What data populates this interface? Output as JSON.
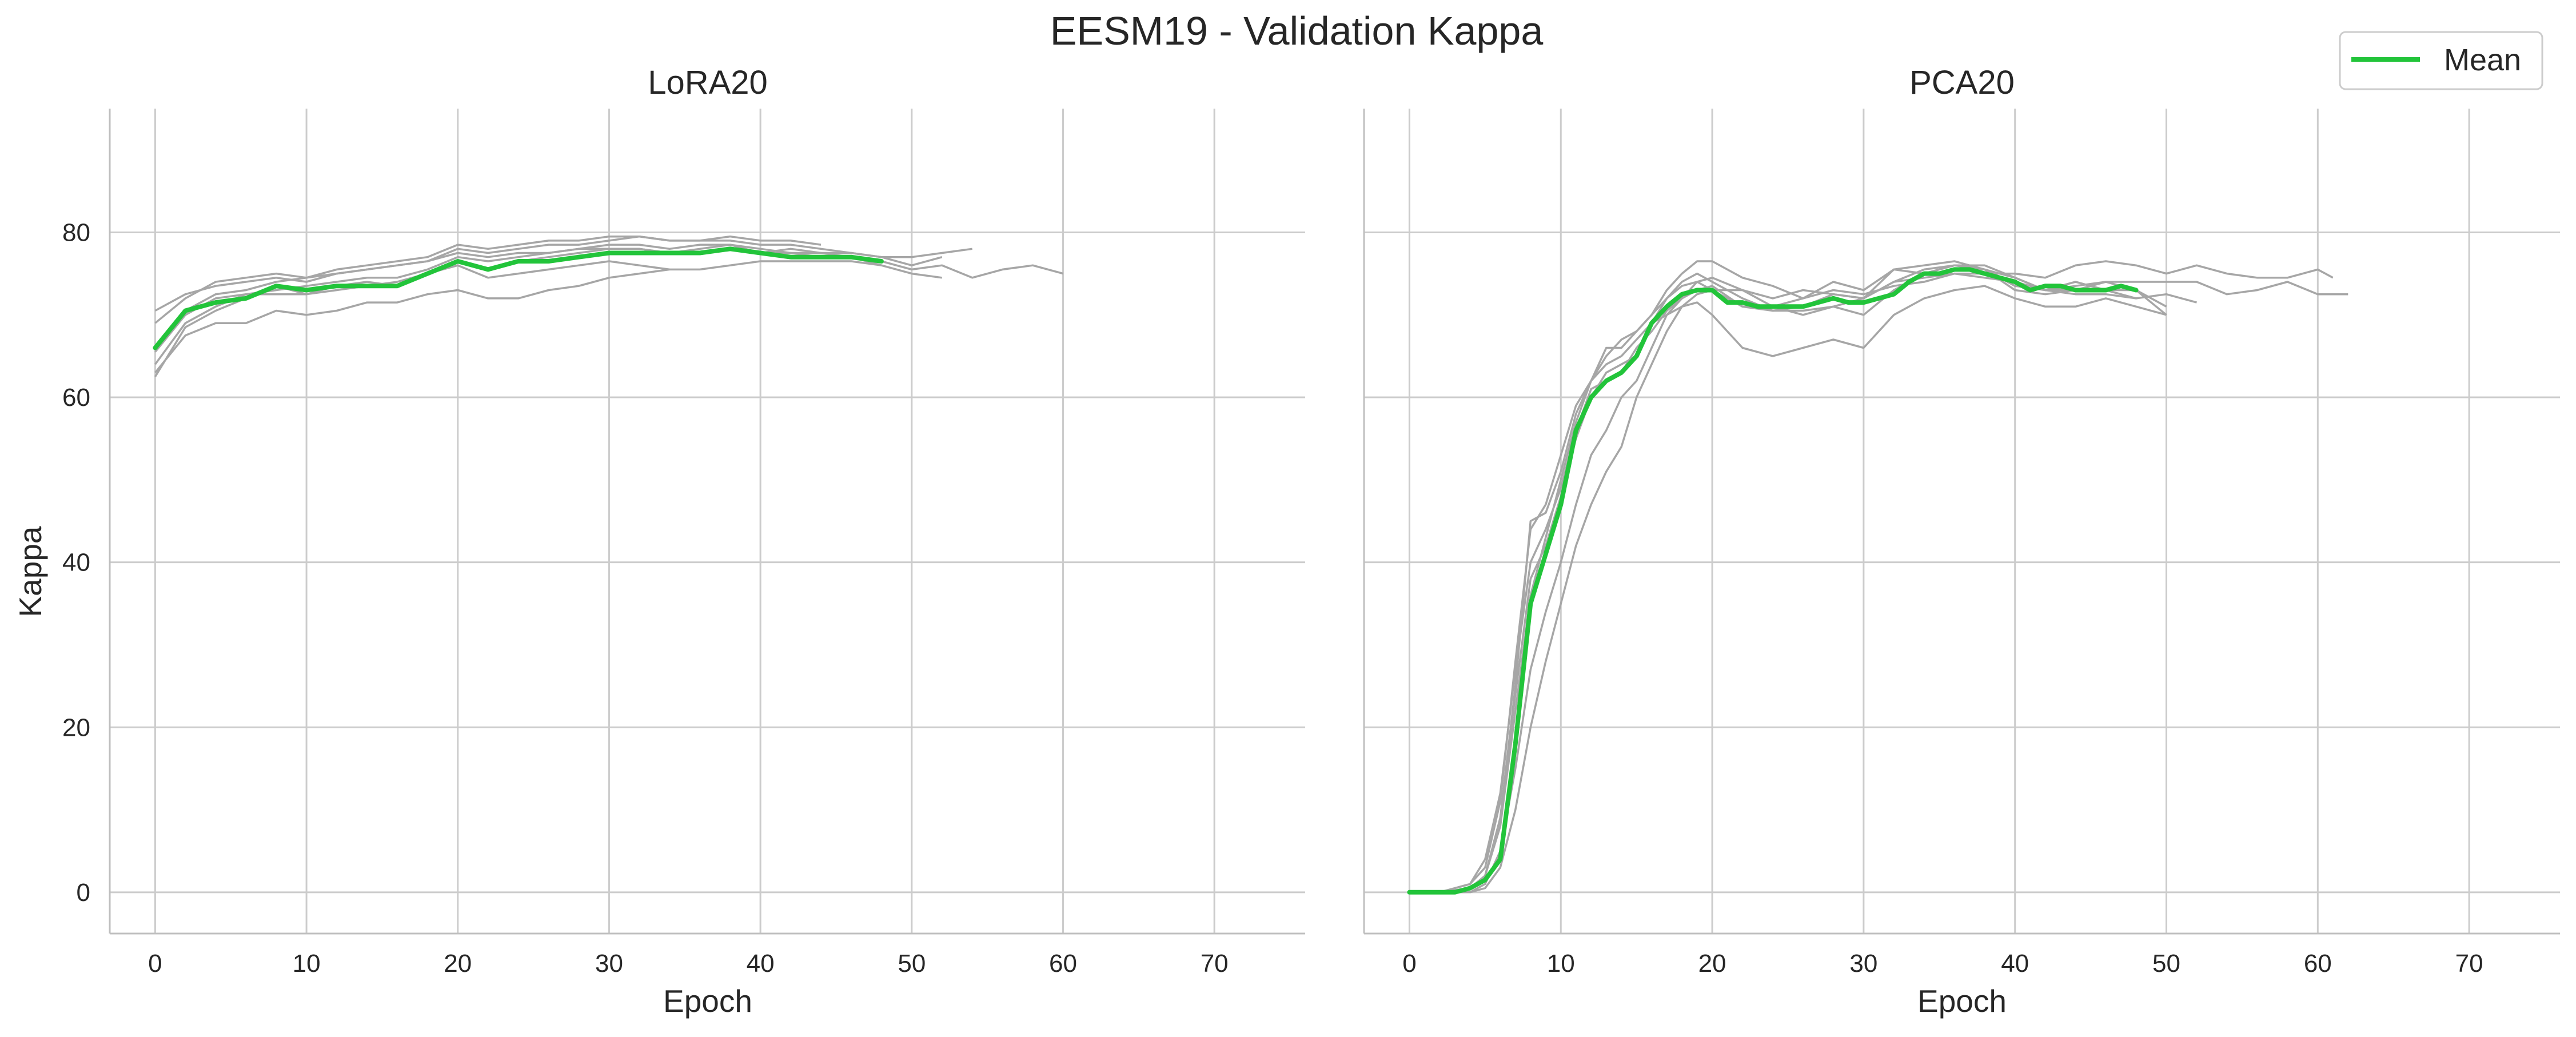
{
  "figure": {
    "title": "EESM19 - Validation Kappa"
  },
  "colors": {
    "mean": "#22c43a",
    "run": "#a6a6a6",
    "grid": "#cccccc",
    "spine": "#bfbfbf",
    "text": "#262626"
  },
  "legend": {
    "label": "Mean",
    "placement": "top-right"
  },
  "chart_data": [
    {
      "type": "line",
      "title": "LoRA20",
      "xlabel": "Epoch",
      "ylabel": "Kappa",
      "xlim": [
        -3,
        76
      ],
      "ylim": [
        -5,
        95
      ],
      "x_ticks": [
        0,
        10,
        20,
        30,
        40,
        50,
        60,
        70
      ],
      "y_ticks": [
        0,
        20,
        40,
        60,
        80
      ],
      "grid": true,
      "runs": [
        {
          "x": [
            0,
            2,
            4,
            6,
            8,
            10,
            12,
            14,
            16,
            18,
            20,
            22,
            24,
            26,
            28,
            30,
            32,
            34,
            36,
            38,
            40,
            42,
            44,
            46,
            48
          ],
          "values": [
            62.5,
            68.5,
            70.5,
            72,
            73.5,
            72.5,
            73.5,
            74,
            73.5,
            75,
            76.5,
            75.5,
            76.5,
            77,
            77.5,
            78,
            78,
            77.5,
            78,
            78.5,
            78,
            77.5,
            77.5,
            77,
            76
          ]
        },
        {
          "x": [
            0,
            2,
            4,
            6,
            8,
            10,
            12,
            14,
            16,
            18,
            20,
            22,
            24,
            26,
            28,
            30,
            32,
            34,
            36,
            38,
            40,
            42,
            44,
            46,
            48,
            50,
            52
          ],
          "values": [
            64,
            69,
            71,
            72.5,
            73,
            73.5,
            74,
            74.5,
            74.5,
            75.5,
            77,
            76.5,
            77,
            77.5,
            78,
            78.5,
            78.5,
            78,
            78.5,
            78.5,
            77.5,
            78,
            77.5,
            77.5,
            77,
            76,
            77
          ]
        },
        {
          "x": [
            0,
            2,
            4,
            6,
            8,
            10,
            12,
            14,
            16,
            18,
            20,
            22,
            24,
            26,
            28,
            30,
            32,
            34,
            36,
            38,
            40,
            42,
            44,
            46,
            48,
            50,
            52,
            54
          ],
          "values": [
            66,
            70.5,
            72.5,
            73,
            74,
            74.5,
            75,
            75.5,
            76,
            76.5,
            78,
            77.5,
            78,
            78.5,
            78.5,
            79,
            79.5,
            79,
            79,
            79,
            78.5,
            78.5,
            78,
            77.5,
            77,
            77,
            77.5,
            78
          ]
        },
        {
          "x": [
            0,
            2,
            4,
            6,
            8,
            10,
            12,
            14,
            16,
            18,
            20,
            22,
            24,
            26,
            28,
            30,
            32,
            34,
            36,
            38,
            40,
            42,
            44
          ],
          "values": [
            69,
            72,
            74,
            74.5,
            75,
            74.5,
            75.5,
            76,
            76.5,
            77,
            78.5,
            78,
            78.5,
            79,
            79,
            79.5,
            79.5,
            79,
            79,
            79.5,
            79,
            79,
            78.5
          ]
        },
        {
          "x": [
            0,
            2,
            4,
            6,
            8,
            10,
            12,
            14,
            16,
            18,
            20,
            22,
            24,
            26,
            28,
            30,
            32,
            34,
            36,
            38,
            40,
            42,
            44,
            46,
            48,
            50,
            52,
            54,
            56,
            58,
            60
          ],
          "values": [
            70.5,
            72.5,
            73.5,
            74,
            74.5,
            74,
            75,
            75.5,
            76,
            76.5,
            77.5,
            77,
            77.5,
            77.5,
            78,
            78,
            78,
            77.5,
            77.5,
            78,
            77.5,
            77.5,
            77,
            77,
            76.5,
            75.5,
            76,
            74.5,
            75.5,
            76,
            75
          ]
        },
        {
          "x": [
            0,
            2,
            4,
            6,
            8,
            10,
            12,
            14,
            16,
            18,
            20,
            22,
            24,
            26,
            28,
            30,
            32,
            34,
            36,
            38,
            40,
            42,
            44,
            46,
            48,
            50,
            52
          ],
          "values": [
            63,
            67.5,
            69,
            69,
            70.5,
            70,
            70.5,
            71.5,
            71.5,
            72.5,
            73,
            72,
            72,
            73,
            73.5,
            74.5,
            75,
            75.5,
            75.5,
            76,
            76.5,
            76.5,
            76.5,
            76.5,
            76,
            75,
            74.5
          ]
        },
        {
          "x": [
            0,
            2,
            4,
            6,
            8,
            10,
            12,
            14,
            16,
            18,
            20,
            22,
            24,
            26,
            28,
            30,
            32,
            34
          ],
          "values": [
            65.5,
            70,
            72,
            72.5,
            72.5,
            72.5,
            73,
            73.5,
            74,
            75,
            76,
            74.5,
            75,
            75.5,
            76,
            76.5,
            76,
            75.5
          ]
        }
      ],
      "mean": {
        "name": "Mean",
        "x": [
          0,
          2,
          4,
          6,
          8,
          10,
          12,
          14,
          16,
          18,
          20,
          22,
          24,
          26,
          28,
          30,
          32,
          34,
          36,
          38,
          40,
          42,
          44,
          46,
          48
        ],
        "values": [
          66,
          70.5,
          71.5,
          72,
          73.5,
          73,
          73.5,
          73.5,
          73.5,
          75,
          76.5,
          75.5,
          76.5,
          76.5,
          77,
          77.5,
          77.5,
          77.5,
          77.5,
          78,
          77.5,
          77,
          77,
          77,
          76.5
        ]
      }
    },
    {
      "type": "line",
      "title": "PCA20",
      "xlabel": "Epoch",
      "ylabel": "",
      "xlim": [
        -3,
        76
      ],
      "ylim": [
        -5,
        95
      ],
      "x_ticks": [
        0,
        10,
        20,
        30,
        40,
        50,
        60,
        70
      ],
      "y_ticks": [
        0,
        20,
        40,
        60,
        80
      ],
      "grid": true,
      "runs": [
        {
          "x": [
            0,
            2,
            4,
            5,
            6,
            7,
            8,
            9,
            10,
            11,
            12,
            13,
            14,
            15,
            16,
            17,
            18,
            19,
            20,
            22,
            24,
            26,
            28,
            30,
            32,
            34,
            36,
            38,
            40,
            42,
            44,
            46,
            48,
            50,
            52
          ],
          "values": [
            0,
            0,
            0.5,
            2,
            9,
            25,
            45,
            46,
            51,
            58,
            62,
            66,
            66,
            68,
            70,
            73,
            75,
            76.5,
            76.5,
            74.5,
            73.5,
            72,
            74,
            73,
            75.5,
            76,
            76.5,
            75.5,
            73.5,
            73,
            72.5,
            72.5,
            72,
            72.5,
            71.5
          ]
        },
        {
          "x": [
            0,
            2,
            4,
            5,
            6,
            7,
            8,
            9,
            10,
            11,
            12,
            13,
            14,
            15,
            16,
            17,
            18,
            19,
            20,
            22,
            24,
            26,
            28,
            30,
            32,
            34,
            36,
            38,
            40,
            42,
            44,
            46,
            48,
            50,
            52,
            54,
            56,
            58,
            60,
            62
          ],
          "values": [
            0,
            0,
            0,
            1,
            5,
            15,
            27,
            34,
            40,
            47,
            53,
            56,
            60,
            62,
            66,
            70,
            72,
            74,
            74.5,
            73,
            72,
            73,
            72.5,
            72,
            74,
            74.5,
            75,
            74.5,
            74,
            73,
            73.5,
            74,
            74,
            74,
            74,
            72.5,
            73,
            74,
            72.5,
            72.5
          ]
        },
        {
          "x": [
            0,
            2,
            4,
            5,
            6,
            7,
            8,
            9,
            10,
            11,
            12,
            13,
            14,
            15,
            16,
            17,
            18,
            19,
            20,
            22,
            24,
            26,
            28,
            30,
            32,
            34,
            36,
            38,
            40,
            42,
            44,
            46,
            48,
            50,
            52,
            54,
            56,
            58,
            60,
            61
          ],
          "values": [
            0,
            0,
            0,
            0.5,
            3,
            10,
            20,
            28,
            35,
            42,
            47,
            51,
            54,
            60,
            64,
            68,
            71,
            72.5,
            73,
            73,
            71,
            72,
            73,
            72.5,
            73.5,
            74,
            75,
            75,
            75,
            74.5,
            76,
            76.5,
            76,
            75,
            76,
            75,
            74.5,
            74.5,
            75.5,
            74.5
          ]
        },
        {
          "x": [
            0,
            2,
            4,
            5,
            6,
            7,
            8,
            9,
            10,
            11,
            12,
            13,
            14,
            15,
            16,
            17,
            18,
            19,
            20,
            22,
            24,
            26,
            28,
            30,
            32,
            34,
            36,
            38,
            40,
            42,
            44,
            46,
            48,
            50
          ],
          "values": [
            0,
            0,
            1,
            3,
            11,
            28,
            44,
            47,
            53,
            59,
            62,
            64,
            65,
            67,
            69,
            70,
            71,
            71.5,
            70,
            66,
            65,
            66,
            67,
            66,
            70,
            72,
            73,
            73.5,
            72,
            71,
            71,
            72,
            71,
            70
          ]
        },
        {
          "x": [
            0,
            2,
            4,
            5,
            6,
            7,
            8,
            9,
            10,
            11,
            12,
            13,
            14,
            15,
            16,
            17,
            18,
            19,
            20,
            22,
            24,
            26,
            28,
            30,
            32,
            34,
            36,
            38,
            40,
            42,
            44,
            46,
            48,
            50
          ],
          "values": [
            0,
            0,
            0.5,
            2,
            9,
            24,
            38,
            42,
            48,
            55,
            60,
            63,
            64,
            65,
            69,
            72,
            74,
            75,
            74,
            72,
            70.5,
            71,
            72.5,
            72,
            74,
            75.5,
            76,
            76,
            74.5,
            73,
            73,
            74,
            73,
            71
          ]
        },
        {
          "x": [
            0,
            2,
            4,
            5,
            6,
            7,
            8,
            9,
            10,
            11,
            12,
            13,
            14,
            15,
            16,
            17,
            18,
            19,
            20,
            22,
            24,
            26,
            28,
            30,
            32,
            34,
            36,
            38,
            40,
            42,
            44,
            46,
            48,
            50
          ],
          "values": [
            0,
            0,
            1,
            4,
            12,
            27,
            40,
            44,
            49,
            56,
            61,
            62,
            63,
            66,
            68,
            70.5,
            72,
            73,
            73.5,
            71,
            70.5,
            70.5,
            71,
            72,
            75.5,
            75,
            76,
            75.5,
            73,
            72.5,
            73,
            73,
            73,
            70
          ]
        },
        {
          "x": [
            0,
            2,
            4,
            5,
            6,
            7,
            8,
            9,
            10,
            11,
            12,
            13,
            14,
            15,
            16,
            17,
            18,
            19,
            20,
            22,
            24,
            26,
            28,
            30,
            32,
            34,
            36,
            38,
            40,
            42,
            44,
            46,
            48
          ],
          "values": [
            0,
            0,
            0.5,
            2,
            8,
            22,
            36,
            43,
            50,
            57,
            62,
            65,
            67,
            68,
            70,
            72,
            73.5,
            74,
            73,
            71,
            71,
            70,
            71,
            70,
            73,
            75,
            76,
            75.5,
            74.5,
            73,
            74,
            73,
            72
          ]
        }
      ],
      "mean": {
        "name": "Mean",
        "x": [
          0,
          1,
          2,
          3,
          4,
          5,
          6,
          7,
          8,
          9,
          10,
          11,
          12,
          13,
          14,
          15,
          16,
          17,
          18,
          19,
          20,
          21,
          22,
          23,
          24,
          25,
          26,
          27,
          28,
          29,
          30,
          31,
          32,
          33,
          34,
          35,
          36,
          37,
          38,
          39,
          40,
          41,
          42,
          43,
          44,
          45,
          46,
          47,
          48
        ],
        "values": [
          0,
          0,
          0,
          0,
          0.5,
          1.5,
          4,
          18,
          35,
          41,
          47,
          56,
          60,
          62,
          63,
          65,
          69,
          71,
          72.5,
          73,
          73,
          71.5,
          71.5,
          71,
          71,
          71,
          71,
          71.5,
          72,
          71.5,
          71.5,
          72,
          72.5,
          74,
          75,
          75,
          75.5,
          75.5,
          75,
          74.5,
          74,
          73,
          73.5,
          73.5,
          73,
          73,
          73,
          73.5,
          73
        ]
      }
    }
  ]
}
